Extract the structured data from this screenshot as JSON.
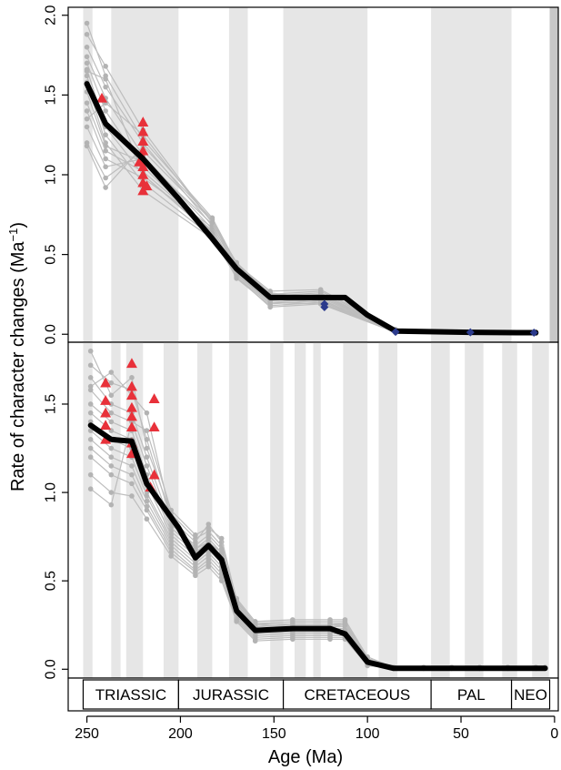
{
  "colors": {
    "stripe": "#e6e6e6",
    "stripe_dark": "#c8c8c8",
    "sample_line": "#bdbdbd",
    "sample_point": "#b3b3b3",
    "mean_line": "#000000",
    "triangle": "#e8313a",
    "diamond": "#2b3a8c"
  },
  "chart_data": {
    "type": "line",
    "xlabel": "Age (Ma)",
    "ylabel": "Rate of character changes (Ma",
    "ylabel_sup": "−1",
    "ylabel_close": ")",
    "x_reversed": true,
    "xlim": [
      260,
      -2
    ],
    "x_ticks": [
      {
        "value": 250,
        "label": "250"
      },
      {
        "value": 200,
        "label": "200"
      },
      {
        "value": 150,
        "label": "150"
      },
      {
        "value": 100,
        "label": "100"
      },
      {
        "value": 50,
        "label": "50"
      },
      {
        "value": 0,
        "label": "0"
      }
    ],
    "periods": [
      {
        "name": "TRIASSIC",
        "start": 252,
        "end": 201
      },
      {
        "name": "JURASSIC",
        "start": 201,
        "end": 145
      },
      {
        "name": "CRETACEOUS",
        "start": 145,
        "end": 66
      },
      {
        "name": "PAL",
        "start": 66,
        "end": 23
      },
      {
        "name": "NEO",
        "start": 23,
        "end": 2.6
      }
    ],
    "panels": [
      {
        "id": "top",
        "ylim": [
          -0.05,
          2.05
        ],
        "y_ticks": [
          {
            "value": 0.0,
            "label": "0.0"
          },
          {
            "value": 0.5,
            "label": "0.5"
          },
          {
            "value": 1.0,
            "label": "1.0"
          },
          {
            "value": 1.5,
            "label": "1.5"
          },
          {
            "value": 2.0,
            "label": "2.0"
          }
        ],
        "stripes": [
          [
            252,
            247
          ],
          [
            237,
            201
          ],
          [
            174,
            164
          ],
          [
            145,
            100
          ],
          [
            66,
            23
          ],
          [
            2.6,
            -2
          ]
        ],
        "dark_stripes": [
          [
            2.6,
            -2
          ]
        ],
        "mean": {
          "x": [
            250,
            240,
            220,
            201,
            183,
            170,
            152,
            140,
            125,
            112,
            100,
            85,
            60,
            45,
            20,
            10
          ],
          "y": [
            1.57,
            1.32,
            1.1,
            0.85,
            0.6,
            0.41,
            0.23,
            0.23,
            0.23,
            0.23,
            0.12,
            0.02,
            0.015,
            0.012,
            0.01,
            0.01
          ]
        },
        "sample_x": [
          250,
          240,
          220,
          183,
          170,
          152,
          125,
          85,
          45,
          10
        ],
        "sample_y": [
          [
            1.95,
            1.62,
            1.22,
            0.73,
            0.44,
            0.27,
            0.28,
            0.03,
            0.015,
            0.015
          ],
          [
            1.88,
            1.68,
            1.28,
            0.7,
            0.45,
            0.25,
            0.27,
            0.025,
            0.013,
            0.012
          ],
          [
            1.8,
            1.55,
            1.2,
            0.68,
            0.42,
            0.24,
            0.26,
            0.02,
            0.012,
            0.01
          ],
          [
            1.74,
            1.48,
            1.12,
            0.66,
            0.4,
            0.23,
            0.25,
            0.02,
            0.012,
            0.01
          ],
          [
            1.7,
            1.4,
            1.05,
            0.64,
            0.39,
            0.22,
            0.24,
            0.018,
            0.01,
            0.01
          ],
          [
            1.66,
            1.3,
            1.0,
            0.62,
            0.38,
            0.21,
            0.23,
            0.016,
            0.01,
            0.008
          ],
          [
            1.62,
            1.25,
            0.95,
            0.61,
            0.37,
            0.2,
            0.22,
            0.015,
            0.01,
            0.008
          ],
          [
            1.58,
            1.2,
            0.9,
            0.6,
            0.36,
            0.19,
            0.21,
            0.014,
            0.009,
            0.007
          ],
          [
            1.52,
            1.18,
            1.08,
            0.63,
            0.35,
            0.18,
            0.2,
            0.013,
            0.009,
            0.007
          ],
          [
            1.45,
            1.15,
            1.02,
            0.65,
            0.36,
            0.17,
            0.19,
            0.012,
            0.008,
            0.006
          ],
          [
            1.4,
            1.1,
            0.98,
            0.67,
            0.38,
            0.2,
            0.19,
            0.012,
            0.008,
            0.006
          ],
          [
            1.3,
            1.05,
            1.1,
            0.69,
            0.4,
            0.22,
            0.2,
            0.011,
            0.008,
            0.006
          ],
          [
            1.2,
            0.98,
            1.15,
            0.71,
            0.41,
            0.24,
            0.21,
            0.011,
            0.007,
            0.005
          ],
          [
            1.18,
            0.92,
            1.18,
            0.72,
            0.43,
            0.26,
            0.22,
            0.01,
            0.007,
            0.005
          ],
          [
            1.35,
            1.45,
            1.25,
            0.7,
            0.44,
            0.25,
            0.24,
            0.02,
            0.01,
            0.008
          ],
          [
            1.65,
            1.6,
            1.0,
            0.63,
            0.37,
            0.21,
            0.25,
            0.02,
            0.01,
            0.009
          ]
        ],
        "triangles": [
          {
            "x": 242,
            "y": 1.48
          },
          {
            "x": 220,
            "y": 1.33
          },
          {
            "x": 220,
            "y": 1.27
          },
          {
            "x": 220,
            "y": 1.21
          },
          {
            "x": 220,
            "y": 1.15
          },
          {
            "x": 220,
            "y": 1.1
          },
          {
            "x": 220,
            "y": 1.05
          },
          {
            "x": 220,
            "y": 1.0
          },
          {
            "x": 220,
            "y": 0.95
          },
          {
            "x": 220,
            "y": 0.9
          },
          {
            "x": 222,
            "y": 1.08
          },
          {
            "x": 218,
            "y": 0.93
          }
        ],
        "diamonds": [
          {
            "x": 123,
            "y": 0.17
          },
          {
            "x": 123,
            "y": 0.19
          },
          {
            "x": 85,
            "y": 0.015
          },
          {
            "x": 45,
            "y": 0.012
          },
          {
            "x": 11,
            "y": 0.01
          }
        ]
      },
      {
        "id": "bottom",
        "ylim": [
          -0.05,
          1.85
        ],
        "y_ticks": [
          {
            "value": 0.0,
            "label": "0.0"
          },
          {
            "value": 0.5,
            "label": "0.5"
          },
          {
            "value": 1.0,
            "label": "1.0"
          },
          {
            "value": 1.5,
            "label": "1.5"
          }
        ],
        "stripes": [
          [
            252,
            247
          ],
          [
            237,
            232
          ],
          [
            229,
            220
          ],
          [
            209,
            201
          ],
          [
            191,
            183
          ],
          [
            174,
            164
          ],
          [
            152,
            145
          ],
          [
            139,
            133
          ],
          [
            129,
            125
          ],
          [
            113,
            100
          ],
          [
            94,
            84
          ],
          [
            66,
            56
          ],
          [
            48,
            38
          ],
          [
            28,
            20
          ],
          [
            12,
            3
          ]
        ],
        "dark_stripes": [],
        "mean": {
          "x": [
            248,
            237,
            226,
            218,
            201,
            192,
            185,
            178,
            170,
            160,
            140,
            120,
            112,
            100,
            86,
            60,
            40,
            20,
            5
          ],
          "y": [
            1.38,
            1.3,
            1.29,
            1.05,
            0.8,
            0.63,
            0.7,
            0.62,
            0.33,
            0.22,
            0.23,
            0.23,
            0.2,
            0.04,
            0.005,
            0.005,
            0.005,
            0.005,
            0.005
          ]
        },
        "sample_x": [
          248,
          237,
          226,
          218,
          205,
          192,
          185,
          178,
          170,
          160,
          140,
          120,
          112,
          100,
          86,
          70,
          55,
          40,
          25,
          10,
          5
        ],
        "sample_y": [
          [
            1.8,
            1.55,
            1.65,
            1.25,
            0.88,
            0.74,
            0.78,
            0.7,
            0.4,
            0.27,
            0.28,
            0.28,
            0.28,
            0.07,
            0.01,
            0.01,
            0.01,
            0.01,
            0.01,
            0.01,
            0.01
          ],
          [
            1.72,
            1.62,
            1.58,
            1.3,
            0.85,
            0.72,
            0.82,
            0.72,
            0.38,
            0.26,
            0.27,
            0.27,
            0.27,
            0.06,
            0.01,
            0.01,
            0.01,
            0.01,
            0.01,
            0.01,
            0.01
          ],
          [
            1.65,
            1.5,
            1.45,
            1.2,
            0.82,
            0.7,
            0.76,
            0.68,
            0.36,
            0.25,
            0.26,
            0.26,
            0.26,
            0.06,
            0.01,
            0.01,
            0.01,
            0.01,
            0.01,
            0.01,
            0.01
          ],
          [
            1.58,
            1.45,
            1.4,
            1.15,
            0.8,
            0.68,
            0.74,
            0.66,
            0.35,
            0.24,
            0.25,
            0.25,
            0.25,
            0.05,
            0.01,
            0.01,
            0.01,
            0.01,
            0.01,
            0.01,
            0.01
          ],
          [
            1.5,
            1.4,
            1.35,
            1.1,
            0.78,
            0.66,
            0.72,
            0.64,
            0.34,
            0.23,
            0.24,
            0.24,
            0.24,
            0.05,
            0.01,
            0.01,
            0.01,
            0.01,
            0.01,
            0.01,
            0.01
          ],
          [
            1.45,
            1.35,
            1.3,
            1.05,
            0.76,
            0.64,
            0.7,
            0.62,
            0.33,
            0.22,
            0.23,
            0.23,
            0.23,
            0.04,
            0.005,
            0.005,
            0.005,
            0.005,
            0.005,
            0.005,
            0.005
          ],
          [
            1.4,
            1.3,
            1.25,
            1.0,
            0.74,
            0.62,
            0.68,
            0.6,
            0.32,
            0.21,
            0.22,
            0.22,
            0.22,
            0.04,
            0.005,
            0.005,
            0.005,
            0.005,
            0.005,
            0.005,
            0.005
          ],
          [
            1.35,
            1.25,
            1.2,
            0.98,
            0.72,
            0.6,
            0.66,
            0.58,
            0.31,
            0.2,
            0.21,
            0.21,
            0.21,
            0.04,
            0.005,
            0.005,
            0.005,
            0.005,
            0.005,
            0.005,
            0.005
          ],
          [
            1.3,
            1.2,
            1.15,
            0.95,
            0.7,
            0.58,
            0.64,
            0.56,
            0.3,
            0.19,
            0.2,
            0.2,
            0.2,
            0.03,
            0.005,
            0.005,
            0.005,
            0.005,
            0.005,
            0.005,
            0.005
          ],
          [
            1.25,
            1.15,
            1.1,
            0.92,
            0.68,
            0.56,
            0.62,
            0.54,
            0.29,
            0.18,
            0.19,
            0.19,
            0.19,
            0.03,
            0.005,
            0.005,
            0.005,
            0.005,
            0.005,
            0.005,
            0.005
          ],
          [
            1.2,
            1.1,
            1.05,
            0.9,
            0.66,
            0.55,
            0.6,
            0.52,
            0.28,
            0.17,
            0.18,
            0.18,
            0.18,
            0.03,
            0.005,
            0.005,
            0.005,
            0.005,
            0.005,
            0.005,
            0.005
          ],
          [
            1.1,
            1.0,
            0.98,
            0.85,
            0.64,
            0.53,
            0.58,
            0.5,
            0.27,
            0.16,
            0.17,
            0.17,
            0.17,
            0.02,
            0.005,
            0.005,
            0.005,
            0.005,
            0.005,
            0.005,
            0.005
          ],
          [
            1.02,
            0.93,
            1.4,
            1.35,
            0.9,
            0.76,
            0.8,
            0.74,
            0.39,
            0.26,
            0.25,
            0.25,
            0.26,
            0.06,
            0.01,
            0.01,
            0.01,
            0.01,
            0.01,
            0.01,
            0.01
          ],
          [
            1.6,
            1.68,
            1.55,
            1.45,
            0.86,
            0.68,
            0.72,
            0.66,
            0.37,
            0.25,
            0.24,
            0.24,
            0.25,
            0.05,
            0.01,
            0.01,
            0.01,
            0.01,
            0.01,
            0.01,
            0.01
          ]
        ],
        "triangles": [
          {
            "x": 240,
            "y": 1.62
          },
          {
            "x": 240,
            "y": 1.52
          },
          {
            "x": 240,
            "y": 1.45
          },
          {
            "x": 240,
            "y": 1.38
          },
          {
            "x": 240,
            "y": 1.3
          },
          {
            "x": 226,
            "y": 1.73
          },
          {
            "x": 226,
            "y": 1.6
          },
          {
            "x": 226,
            "y": 1.55
          },
          {
            "x": 226,
            "y": 1.48
          },
          {
            "x": 226,
            "y": 1.43
          },
          {
            "x": 226,
            "y": 1.37
          },
          {
            "x": 226,
            "y": 1.28
          },
          {
            "x": 226,
            "y": 1.22
          },
          {
            "x": 214,
            "y": 1.53
          },
          {
            "x": 214,
            "y": 1.37
          },
          {
            "x": 214,
            "y": 1.1
          },
          {
            "x": 216,
            "y": 1.03
          }
        ],
        "diamonds": []
      }
    ]
  }
}
